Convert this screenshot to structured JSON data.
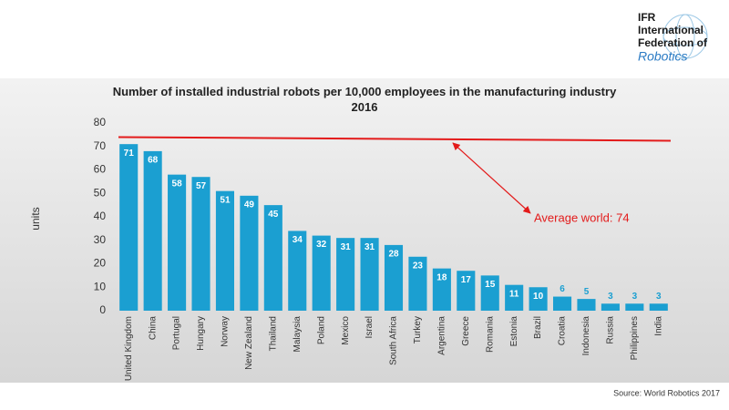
{
  "logo": {
    "lines": [
      "IFR",
      "International",
      "Federation of",
      "Robotics"
    ]
  },
  "chart_data": {
    "type": "bar",
    "title": "Number of installed industrial robots per 10,000 employees in the manufacturing industry 2016",
    "y_label": "units",
    "categories": [
      "United Kingdom",
      "China",
      "Portugal",
      "Hungary",
      "Norway",
      "New Zealand",
      "Thailand",
      "Malaysia",
      "Poland",
      "Mexico",
      "Israel",
      "South Africa",
      "Turkey",
      "Argentina",
      "Greece",
      "Romania",
      "Estonia",
      "Brazil",
      "Croatia",
      "Indonesia",
      "Russia",
      "Philippines",
      "India"
    ],
    "values": [
      71,
      68,
      58,
      57,
      51,
      49,
      45,
      34,
      32,
      31,
      31,
      28,
      23,
      18,
      17,
      15,
      11,
      10,
      6,
      5,
      3,
      3,
      3
    ],
    "color": "#1b9fd1",
    "ylim": [
      0,
      80
    ],
    "yticks": [
      0,
      10,
      20,
      30,
      40,
      50,
      60,
      70,
      80
    ],
    "grid": false,
    "reference_line": {
      "value": 74,
      "label": "Average world: 74",
      "color": "#e31b1b"
    },
    "source": "Source: World Robotics 2017"
  }
}
